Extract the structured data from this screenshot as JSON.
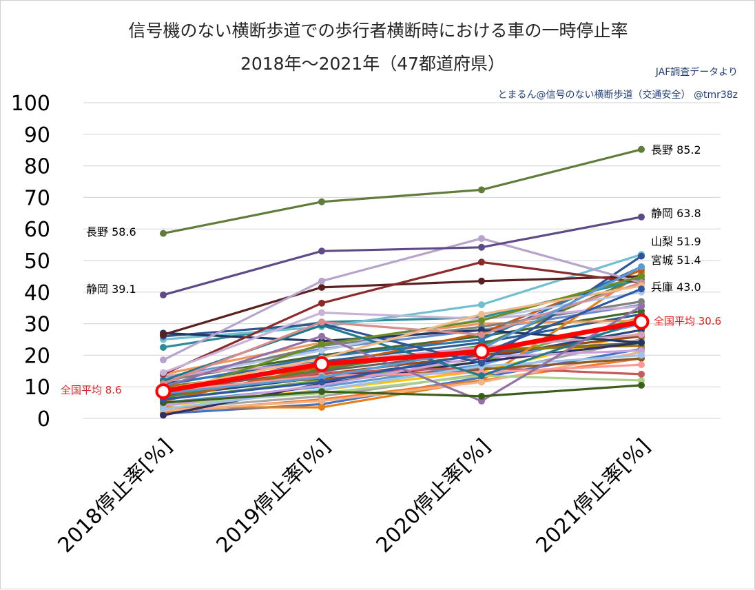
{
  "chart_data": {
    "type": "line",
    "title": "信号機のない横断歩道での歩行者横断時における車の一時停止率",
    "subtitle": "2018年～2021年（47都道府県）",
    "source_lines": [
      "JAF調査データより",
      "とまるん@信号のない横断歩道（交通安全） @tmr38z"
    ],
    "categories": [
      "2018停止率[%]",
      "2019停止率[%]",
      "2020停止率[%]",
      "2021停止率[%]"
    ],
    "ylim": [
      0,
      100
    ],
    "yticks": [
      0,
      10,
      20,
      30,
      40,
      50,
      60,
      70,
      80,
      90,
      100
    ],
    "grid": true,
    "series": [
      {
        "values": [
          1.5,
          4.5,
          13.0,
          22.0
        ],
        "color": "#4472c4"
      },
      {
        "values": [
          2.0,
          6.0,
          12.0,
          19.0
        ],
        "color": "#ed7d31"
      },
      {
        "values": [
          3.0,
          7.0,
          14.0,
          25.0
        ],
        "color": "#a5a5a5"
      },
      {
        "values": [
          4.0,
          9.0,
          15.0,
          27.0
        ],
        "color": "#ffc000"
      },
      {
        "values": [
          5.0,
          10.0,
          17.0,
          30.0
        ],
        "color": "#5b9bd5"
      },
      {
        "values": [
          6.0,
          12.0,
          18.0,
          32.0
        ],
        "color": "#70ad47"
      },
      {
        "values": [
          7.0,
          13.0,
          19.0,
          28.0
        ],
        "color": "#264478"
      },
      {
        "values": [
          8.0,
          14.0,
          20.0,
          26.0
        ],
        "color": "#9e480e"
      },
      {
        "values": [
          9.0,
          15.0,
          21.0,
          24.0
        ],
        "color": "#636363"
      },
      {
        "values": [
          10.0,
          16.0,
          22.0,
          23.0
        ],
        "color": "#997300"
      },
      {
        "values": [
          11.0,
          18.0,
          24.0,
          33.0
        ],
        "color": "#255e91"
      },
      {
        "values": [
          12.0,
          20.0,
          26.0,
          34.0
        ],
        "color": "#43682b"
      },
      {
        "values": [
          13.0,
          22.0,
          28.0,
          36.0
        ],
        "color": "#698ed0"
      },
      {
        "values": [
          14.0,
          24.0,
          30.0,
          31.0
        ],
        "color": "#f1975a"
      },
      {
        "values": [
          3.5,
          3.5,
          12.0,
          46.0
        ],
        "color": "#e8801a"
      },
      {
        "values": [
          2.5,
          5.5,
          11.5,
          21.0
        ],
        "color": "#f4b183"
      },
      {
        "values": [
          4.5,
          8.0,
          13.5,
          12.0
        ],
        "color": "#a9d18e"
      },
      {
        "values": [
          1.0,
          11.0,
          18.0,
          24.0
        ],
        "color": "#2f2f5f"
      },
      {
        "values": [
          7.5,
          14.5,
          16.0,
          14.0
        ],
        "color": "#c55a5a"
      },
      {
        "values": [
          9.5,
          12.5,
          15.5,
          19.0
        ],
        "color": "#8b5a2b"
      },
      {
        "values": [
          6.5,
          15.5,
          23.0,
          45.0
        ],
        "color": "#548235"
      },
      {
        "values": [
          5.5,
          16.5,
          27.0,
          47.0
        ],
        "color": "#c55a11"
      },
      {
        "values": [
          10.5,
          19.5,
          25.0,
          48.0
        ],
        "color": "#2e75b6"
      },
      {
        "values": [
          8.5,
          13.5,
          14.5,
          17.0
        ],
        "color": "#ff9999"
      },
      {
        "values": [
          11.5,
          23.0,
          29.0,
          37.0
        ],
        "color": "#7f7f7f"
      },
      {
        "values": [
          12.5,
          21.5,
          31.5,
          40.0
        ],
        "color": "#b4c7e7"
      },
      {
        "values": [
          13.5,
          17.5,
          22.5,
          26.5
        ],
        "color": "#d6a0c0"
      },
      {
        "values": [
          4.0,
          10.5,
          19.5,
          21.5
        ],
        "color": "#c9a0dc"
      },
      {
        "values": [
          3.0,
          9.0,
          16.5,
          20.0
        ],
        "color": "#9dc3e6"
      },
      {
        "values": [
          22.5,
          30.5,
          32.0,
          44.0
        ],
        "color": "#2e8b9a"
      },
      {
        "values": [
          25.0,
          29.0,
          36.0,
          51.9
        ],
        "color": "#70bfd1"
      },
      {
        "values": [
          26.0,
          30.0,
          17.5,
          51.4
        ],
        "color": "#2f5597"
      },
      {
        "values": [
          27.0,
          24.5,
          28.0,
          24.0
        ],
        "color": "#203864"
      },
      {
        "values": [
          26.5,
          41.5,
          43.5,
          45.0
        ],
        "color": "#5a2020"
      },
      {
        "values": [
          14.0,
          36.5,
          49.5,
          43.0
        ],
        "color": "#8b2a2a"
      },
      {
        "values": [
          18.5,
          43.5,
          57.0,
          43.0
        ],
        "color": "#b7a3cc"
      },
      {
        "values": [
          14.5,
          33.5,
          31.5,
          35.5
        ],
        "color": "#c8b2d8"
      },
      {
        "values": [
          7.0,
          23.5,
          31.0,
          45.0
        ],
        "color": "#6b8e23"
      },
      {
        "values": [
          12.0,
          29.5,
          13.5,
          31.0
        ],
        "color": "#1f7a8c"
      },
      {
        "values": [
          11.0,
          30.5,
          26.5,
          43.0
        ],
        "color": "#d98c8c"
      },
      {
        "values": [
          10.0,
          26.0,
          5.5,
          35.5
        ],
        "color": "#9370a8"
      },
      {
        "values": [
          9.0,
          19.0,
          33.0,
          42.0
        ],
        "color": "#f2b885"
      },
      {
        "values": [
          5.0,
          8.5,
          7.0,
          10.5
        ],
        "color": "#3b5e1a"
      },
      {
        "values": [
          8.0,
          13.0,
          22.0,
          48.0
        ],
        "color": "#5b9bd5"
      },
      {
        "values": [
          6.0,
          11.5,
          20.5,
          41.0
        ],
        "color": "#2b57a5"
      },
      {
        "values": [
          39.1,
          53.0,
          54.2,
          63.8
        ],
        "color": "#5e4a86"
      },
      {
        "values": [
          58.6,
          68.6,
          72.4,
          85.2
        ],
        "color": "#607c3a"
      },
      {
        "name": "全国平均",
        "values": [
          8.6,
          17.2,
          21.2,
          30.6
        ],
        "color": "#ff0000",
        "highlight": true
      }
    ],
    "labels": {
      "nagano_start": "長野 58.6",
      "shizuoka_start": "静岡 39.1",
      "avg_start": "全国平均 8.6",
      "nagano_end": "長野 85.2",
      "shizuoka_end": "静岡 63.8",
      "yamanashi_end": "山梨 51.9",
      "miyagi_end": "宮城 51.4",
      "hyogo_end": "兵庫 43.0",
      "avg_end": "全国平均 30.6"
    }
  }
}
